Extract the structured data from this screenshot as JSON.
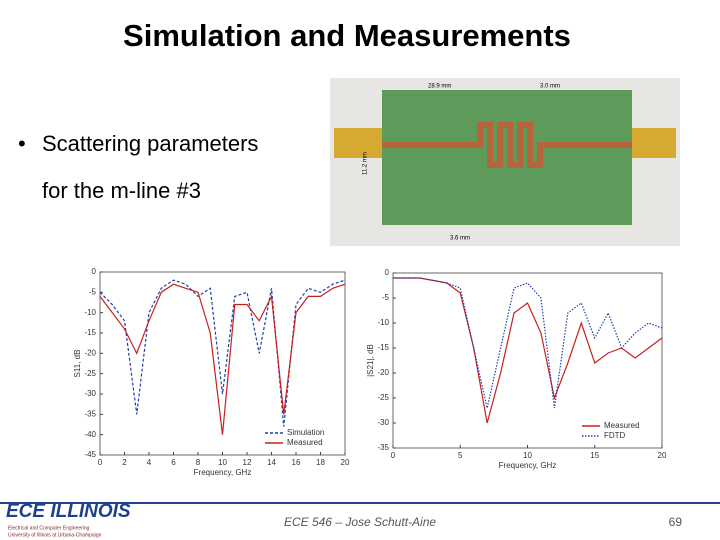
{
  "slide": {
    "title": "Simulation and Measurements",
    "bullet_line1": "Scattering parameters",
    "bullet_line2": "for the m-line #3",
    "footer": "ECE 546 – Jose Schutt-Aine",
    "page": "69",
    "logo": {
      "name": "ECE ILLINOIS",
      "line1": "Electrical and Computer Engineering",
      "line2": "University of Illinois at Urbana-Champaign"
    },
    "photo": {
      "dim1": "28.9 mm",
      "dim2": "3.0 mm",
      "dim3": "3.6 mm",
      "dim4": "11.2 mm"
    }
  },
  "chart_data": [
    {
      "type": "line",
      "xlabel": "Frequency, GHz",
      "ylabel": "S11, dB",
      "xlim": [
        0,
        20
      ],
      "xticks": [
        0,
        2,
        4,
        6,
        8,
        10,
        12,
        14,
        16,
        18,
        20
      ],
      "ylim": [
        -45,
        0
      ],
      "yticks": [
        0,
        -5,
        -10,
        -15,
        -20,
        -25,
        -30,
        -35,
        -40,
        -45
      ],
      "legend": "lower right",
      "x": [
        0,
        1,
        2,
        3,
        4,
        5,
        6,
        7,
        8,
        9,
        10,
        11,
        12,
        13,
        14,
        15,
        16,
        17,
        18,
        19,
        20
      ],
      "series": [
        {
          "name": "Simulation",
          "color": "#1f3fb0",
          "style": "dashed",
          "values": [
            -5,
            -8,
            -12,
            -35,
            -10,
            -4,
            -2,
            -3,
            -6,
            -4,
            -30,
            -6,
            -5,
            -20,
            -4,
            -38,
            -8,
            -4,
            -5,
            -3,
            -2
          ]
        },
        {
          "name": "Measured",
          "color": "#c8201e",
          "style": "solid",
          "values": [
            -6,
            -10,
            -14,
            -20,
            -12,
            -5,
            -3,
            -4,
            -5,
            -15,
            -40,
            -8,
            -8,
            -12,
            -6,
            -35,
            -10,
            -6,
            -6,
            -4,
            -3
          ]
        }
      ]
    },
    {
      "type": "line",
      "xlabel": "Frequency, GHz",
      "ylabel": "|S21|, dB",
      "xlim": [
        0,
        20
      ],
      "xticks": [
        0,
        5,
        10,
        15,
        20
      ],
      "ylim": [
        -35,
        0
      ],
      "yticks": [
        0,
        -5,
        -10,
        -15,
        -20,
        -25,
        -30,
        -35
      ],
      "legend": "lower right",
      "x": [
        0,
        1,
        2,
        3,
        4,
        5,
        6,
        7,
        8,
        9,
        10,
        11,
        12,
        13,
        14,
        15,
        16,
        17,
        18,
        19,
        20
      ],
      "series": [
        {
          "name": "Measured",
          "color": "#c8201e",
          "style": "solid",
          "values": [
            -1,
            -1,
            -1,
            -1.5,
            -2,
            -4,
            -15,
            -30,
            -20,
            -8,
            -6,
            -12,
            -25,
            -18,
            -10,
            -18,
            -16,
            -15,
            -17,
            -15,
            -13
          ]
        },
        {
          "name": "FDTD",
          "color": "#1f3fb0",
          "style": "dotted",
          "values": [
            -1,
            -1,
            -1,
            -1.5,
            -2,
            -3,
            -15,
            -27,
            -15,
            -3,
            -2,
            -5,
            -27,
            -8,
            -6,
            -13,
            -8,
            -15,
            -12,
            -10,
            -11
          ]
        }
      ]
    }
  ]
}
